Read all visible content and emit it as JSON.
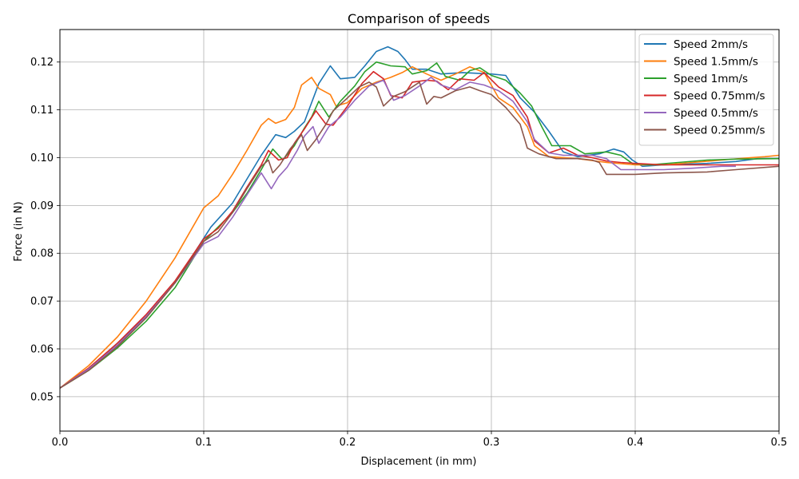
{
  "chart_data": {
    "type": "line",
    "title": "Comparison of speeds",
    "xlabel": "Displacement (in mm)",
    "ylabel": "Force (in N)",
    "xlim": [
      0.0,
      0.5
    ],
    "ylim": [
      0.0428,
      0.1268
    ],
    "x_ticks": [
      0.0,
      0.1,
      0.2,
      0.3,
      0.4,
      0.5
    ],
    "x_tick_labels": [
      "0.0",
      "0.1",
      "0.2",
      "0.3",
      "0.4",
      "0.5"
    ],
    "y_ticks": [
      0.05,
      0.06,
      0.07,
      0.08,
      0.09,
      0.1,
      0.11,
      0.12
    ],
    "y_tick_labels": [
      "0.05",
      "0.06",
      "0.07",
      "0.08",
      "0.09",
      "0.10",
      "0.11",
      "0.12"
    ],
    "grid": true,
    "legend_position": "top-right",
    "series": [
      {
        "name": "Speed 2mm/s",
        "color": "#1f77b4",
        "points": [
          [
            0.0,
            0.0518
          ],
          [
            0.02,
            0.0558
          ],
          [
            0.04,
            0.0612
          ],
          [
            0.06,
            0.0668
          ],
          [
            0.08,
            0.0738
          ],
          [
            0.095,
            0.0808
          ],
          [
            0.105,
            0.0855
          ],
          [
            0.12,
            0.0905
          ],
          [
            0.13,
            0.0955
          ],
          [
            0.14,
            0.1005
          ],
          [
            0.15,
            0.1048
          ],
          [
            0.157,
            0.1042
          ],
          [
            0.163,
            0.1055
          ],
          [
            0.17,
            0.1075
          ],
          [
            0.175,
            0.1115
          ],
          [
            0.18,
            0.1155
          ],
          [
            0.188,
            0.1192
          ],
          [
            0.195,
            0.1165
          ],
          [
            0.205,
            0.1168
          ],
          [
            0.212,
            0.1192
          ],
          [
            0.22,
            0.1222
          ],
          [
            0.228,
            0.1232
          ],
          [
            0.235,
            0.1222
          ],
          [
            0.24,
            0.1205
          ],
          [
            0.245,
            0.1185
          ],
          [
            0.255,
            0.1185
          ],
          [
            0.265,
            0.1175
          ],
          [
            0.28,
            0.1178
          ],
          [
            0.3,
            0.1175
          ],
          [
            0.31,
            0.1172
          ],
          [
            0.32,
            0.1125
          ],
          [
            0.33,
            0.1095
          ],
          [
            0.34,
            0.1055
          ],
          [
            0.35,
            0.1012
          ],
          [
            0.36,
            0.1002
          ],
          [
            0.375,
            0.1008
          ],
          [
            0.385,
            0.1018
          ],
          [
            0.392,
            0.1012
          ],
          [
            0.398,
            0.0995
          ],
          [
            0.405,
            0.0982
          ],
          [
            0.42,
            0.0985
          ],
          [
            0.45,
            0.0988
          ],
          [
            0.47,
            0.0992
          ],
          [
            0.485,
            0.0998
          ],
          [
            0.5,
            0.0998
          ]
        ]
      },
      {
        "name": "Speed 1.5mm/s",
        "color": "#ff7f0e",
        "points": [
          [
            0.0,
            0.0518
          ],
          [
            0.02,
            0.0565
          ],
          [
            0.04,
            0.0625
          ],
          [
            0.06,
            0.07
          ],
          [
            0.08,
            0.079
          ],
          [
            0.1,
            0.0895
          ],
          [
            0.11,
            0.092
          ],
          [
            0.12,
            0.0965
          ],
          [
            0.13,
            0.1015
          ],
          [
            0.14,
            0.1068
          ],
          [
            0.145,
            0.1082
          ],
          [
            0.15,
            0.1072
          ],
          [
            0.157,
            0.108
          ],
          [
            0.163,
            0.1105
          ],
          [
            0.168,
            0.1152
          ],
          [
            0.175,
            0.1168
          ],
          [
            0.18,
            0.1145
          ],
          [
            0.188,
            0.1132
          ],
          [
            0.192,
            0.1108
          ],
          [
            0.2,
            0.1115
          ],
          [
            0.21,
            0.1145
          ],
          [
            0.22,
            0.1158
          ],
          [
            0.23,
            0.1168
          ],
          [
            0.238,
            0.1178
          ],
          [
            0.245,
            0.119
          ],
          [
            0.255,
            0.1175
          ],
          [
            0.265,
            0.1162
          ],
          [
            0.275,
            0.1175
          ],
          [
            0.285,
            0.119
          ],
          [
            0.295,
            0.1178
          ],
          [
            0.305,
            0.1125
          ],
          [
            0.315,
            0.1105
          ],
          [
            0.325,
            0.1065
          ],
          [
            0.33,
            0.1025
          ],
          [
            0.34,
            0.1002
          ],
          [
            0.36,
            0.0998
          ],
          [
            0.38,
            0.099
          ],
          [
            0.4,
            0.0985
          ],
          [
            0.42,
            0.0985
          ],
          [
            0.44,
            0.099
          ],
          [
            0.46,
            0.0995
          ],
          [
            0.48,
            0.1
          ],
          [
            0.49,
            0.1002
          ],
          [
            0.5,
            0.1005
          ]
        ]
      },
      {
        "name": "Speed 1mm/s",
        "color": "#2ca02c",
        "points": [
          [
            0.0,
            0.0518
          ],
          [
            0.02,
            0.0555
          ],
          [
            0.04,
            0.0602
          ],
          [
            0.06,
            0.0658
          ],
          [
            0.08,
            0.0728
          ],
          [
            0.1,
            0.0825
          ],
          [
            0.12,
            0.0885
          ],
          [
            0.13,
            0.0925
          ],
          [
            0.14,
            0.0975
          ],
          [
            0.148,
            0.1018
          ],
          [
            0.155,
            0.0995
          ],
          [
            0.163,
            0.1025
          ],
          [
            0.17,
            0.1062
          ],
          [
            0.175,
            0.1085
          ],
          [
            0.18,
            0.1118
          ],
          [
            0.187,
            0.1085
          ],
          [
            0.195,
            0.1118
          ],
          [
            0.205,
            0.115
          ],
          [
            0.212,
            0.118
          ],
          [
            0.22,
            0.12
          ],
          [
            0.23,
            0.1192
          ],
          [
            0.24,
            0.119
          ],
          [
            0.245,
            0.1175
          ],
          [
            0.255,
            0.1182
          ],
          [
            0.262,
            0.1198
          ],
          [
            0.268,
            0.117
          ],
          [
            0.278,
            0.1162
          ],
          [
            0.285,
            0.1182
          ],
          [
            0.292,
            0.1188
          ],
          [
            0.3,
            0.1172
          ],
          [
            0.31,
            0.1162
          ],
          [
            0.32,
            0.1135
          ],
          [
            0.328,
            0.1108
          ],
          [
            0.335,
            0.1065
          ],
          [
            0.342,
            0.1025
          ],
          [
            0.355,
            0.1025
          ],
          [
            0.365,
            0.1008
          ],
          [
            0.38,
            0.1012
          ],
          [
            0.39,
            0.1005
          ],
          [
            0.398,
            0.0988
          ],
          [
            0.41,
            0.0985
          ],
          [
            0.43,
            0.099
          ],
          [
            0.45,
            0.0995
          ],
          [
            0.47,
            0.0997
          ],
          [
            0.5,
            0.0998
          ]
        ]
      },
      {
        "name": "Speed 0.75mm/s",
        "color": "#d62728",
        "points": [
          [
            0.0,
            0.0518
          ],
          [
            0.02,
            0.056
          ],
          [
            0.04,
            0.0612
          ],
          [
            0.06,
            0.0672
          ],
          [
            0.08,
            0.0742
          ],
          [
            0.1,
            0.083
          ],
          [
            0.11,
            0.0852
          ],
          [
            0.12,
            0.0888
          ],
          [
            0.13,
            0.0938
          ],
          [
            0.14,
            0.0985
          ],
          [
            0.145,
            0.1015
          ],
          [
            0.152,
            0.0995
          ],
          [
            0.158,
            0.1
          ],
          [
            0.163,
            0.103
          ],
          [
            0.17,
            0.106
          ],
          [
            0.178,
            0.1098
          ],
          [
            0.185,
            0.107
          ],
          [
            0.19,
            0.1068
          ],
          [
            0.2,
            0.1108
          ],
          [
            0.21,
            0.1155
          ],
          [
            0.218,
            0.118
          ],
          [
            0.225,
            0.1165
          ],
          [
            0.23,
            0.113
          ],
          [
            0.238,
            0.1125
          ],
          [
            0.245,
            0.1158
          ],
          [
            0.255,
            0.1162
          ],
          [
            0.262,
            0.116
          ],
          [
            0.27,
            0.1142
          ],
          [
            0.278,
            0.1165
          ],
          [
            0.288,
            0.1162
          ],
          [
            0.295,
            0.1178
          ],
          [
            0.305,
            0.1148
          ],
          [
            0.315,
            0.113
          ],
          [
            0.325,
            0.1085
          ],
          [
            0.33,
            0.1035
          ],
          [
            0.34,
            0.101
          ],
          [
            0.35,
            0.102
          ],
          [
            0.36,
            0.1005
          ],
          [
            0.37,
            0.1
          ],
          [
            0.38,
            0.0993
          ],
          [
            0.39,
            0.099
          ],
          [
            0.4,
            0.0988
          ],
          [
            0.42,
            0.0985
          ],
          [
            0.45,
            0.0985
          ],
          [
            0.47,
            0.0985
          ],
          [
            0.5,
            0.0985
          ]
        ]
      },
      {
        "name": "Speed 0.5mm/s",
        "color": "#9467bd",
        "points": [
          [
            0.0,
            0.0518
          ],
          [
            0.02,
            0.0558
          ],
          [
            0.04,
            0.0608
          ],
          [
            0.06,
            0.0668
          ],
          [
            0.08,
            0.0738
          ],
          [
            0.1,
            0.082
          ],
          [
            0.11,
            0.0835
          ],
          [
            0.12,
            0.0875
          ],
          [
            0.13,
            0.0922
          ],
          [
            0.14,
            0.0968
          ],
          [
            0.147,
            0.0935
          ],
          [
            0.152,
            0.096
          ],
          [
            0.158,
            0.098
          ],
          [
            0.165,
            0.1015
          ],
          [
            0.17,
            0.1045
          ],
          [
            0.176,
            0.1065
          ],
          [
            0.18,
            0.103
          ],
          [
            0.187,
            0.1065
          ],
          [
            0.195,
            0.1085
          ],
          [
            0.205,
            0.112
          ],
          [
            0.215,
            0.115
          ],
          [
            0.225,
            0.1162
          ],
          [
            0.232,
            0.112
          ],
          [
            0.24,
            0.113
          ],
          [
            0.25,
            0.115
          ],
          [
            0.258,
            0.1168
          ],
          [
            0.265,
            0.1152
          ],
          [
            0.275,
            0.1142
          ],
          [
            0.285,
            0.1158
          ],
          [
            0.295,
            0.1152
          ],
          [
            0.305,
            0.114
          ],
          [
            0.315,
            0.1118
          ],
          [
            0.325,
            0.1075
          ],
          [
            0.33,
            0.1038
          ],
          [
            0.34,
            0.101
          ],
          [
            0.35,
            0.1005
          ],
          [
            0.36,
            0.1005
          ],
          [
            0.37,
            0.1005
          ],
          [
            0.38,
            0.0998
          ],
          [
            0.39,
            0.0975
          ],
          [
            0.4,
            0.0975
          ],
          [
            0.42,
            0.0975
          ],
          [
            0.44,
            0.0978
          ],
          [
            0.46,
            0.0982
          ],
          [
            0.47,
            0.0982
          ]
        ]
      },
      {
        "name": "Speed 0.25mm/s",
        "color": "#8c564b",
        "points": [
          [
            0.0,
            0.0518
          ],
          [
            0.02,
            0.0555
          ],
          [
            0.04,
            0.0605
          ],
          [
            0.06,
            0.0665
          ],
          [
            0.08,
            0.0738
          ],
          [
            0.1,
            0.0825
          ],
          [
            0.11,
            0.0845
          ],
          [
            0.12,
            0.0885
          ],
          [
            0.13,
            0.0935
          ],
          [
            0.14,
            0.0982
          ],
          [
            0.145,
            0.0995
          ],
          [
            0.148,
            0.0968
          ],
          [
            0.153,
            0.0985
          ],
          [
            0.16,
            0.1018
          ],
          [
            0.168,
            0.1048
          ],
          [
            0.172,
            0.1015
          ],
          [
            0.178,
            0.1038
          ],
          [
            0.185,
            0.107
          ],
          [
            0.19,
            0.1098
          ],
          [
            0.2,
            0.1125
          ],
          [
            0.208,
            0.1148
          ],
          [
            0.215,
            0.1158
          ],
          [
            0.22,
            0.1148
          ],
          [
            0.225,
            0.1108
          ],
          [
            0.232,
            0.1128
          ],
          [
            0.24,
            0.1138
          ],
          [
            0.25,
            0.1158
          ],
          [
            0.255,
            0.1112
          ],
          [
            0.26,
            0.1128
          ],
          [
            0.265,
            0.1125
          ],
          [
            0.275,
            0.114
          ],
          [
            0.285,
            0.1148
          ],
          [
            0.292,
            0.114
          ],
          [
            0.3,
            0.1132
          ],
          [
            0.31,
            0.1105
          ],
          [
            0.32,
            0.107
          ],
          [
            0.325,
            0.102
          ],
          [
            0.333,
            0.1008
          ],
          [
            0.345,
            0.0998
          ],
          [
            0.36,
            0.0998
          ],
          [
            0.37,
            0.0995
          ],
          [
            0.375,
            0.099
          ],
          [
            0.38,
            0.0965
          ],
          [
            0.4,
            0.0965
          ],
          [
            0.42,
            0.0968
          ],
          [
            0.45,
            0.097
          ],
          [
            0.47,
            0.0975
          ],
          [
            0.5,
            0.0982
          ]
        ]
      }
    ]
  }
}
